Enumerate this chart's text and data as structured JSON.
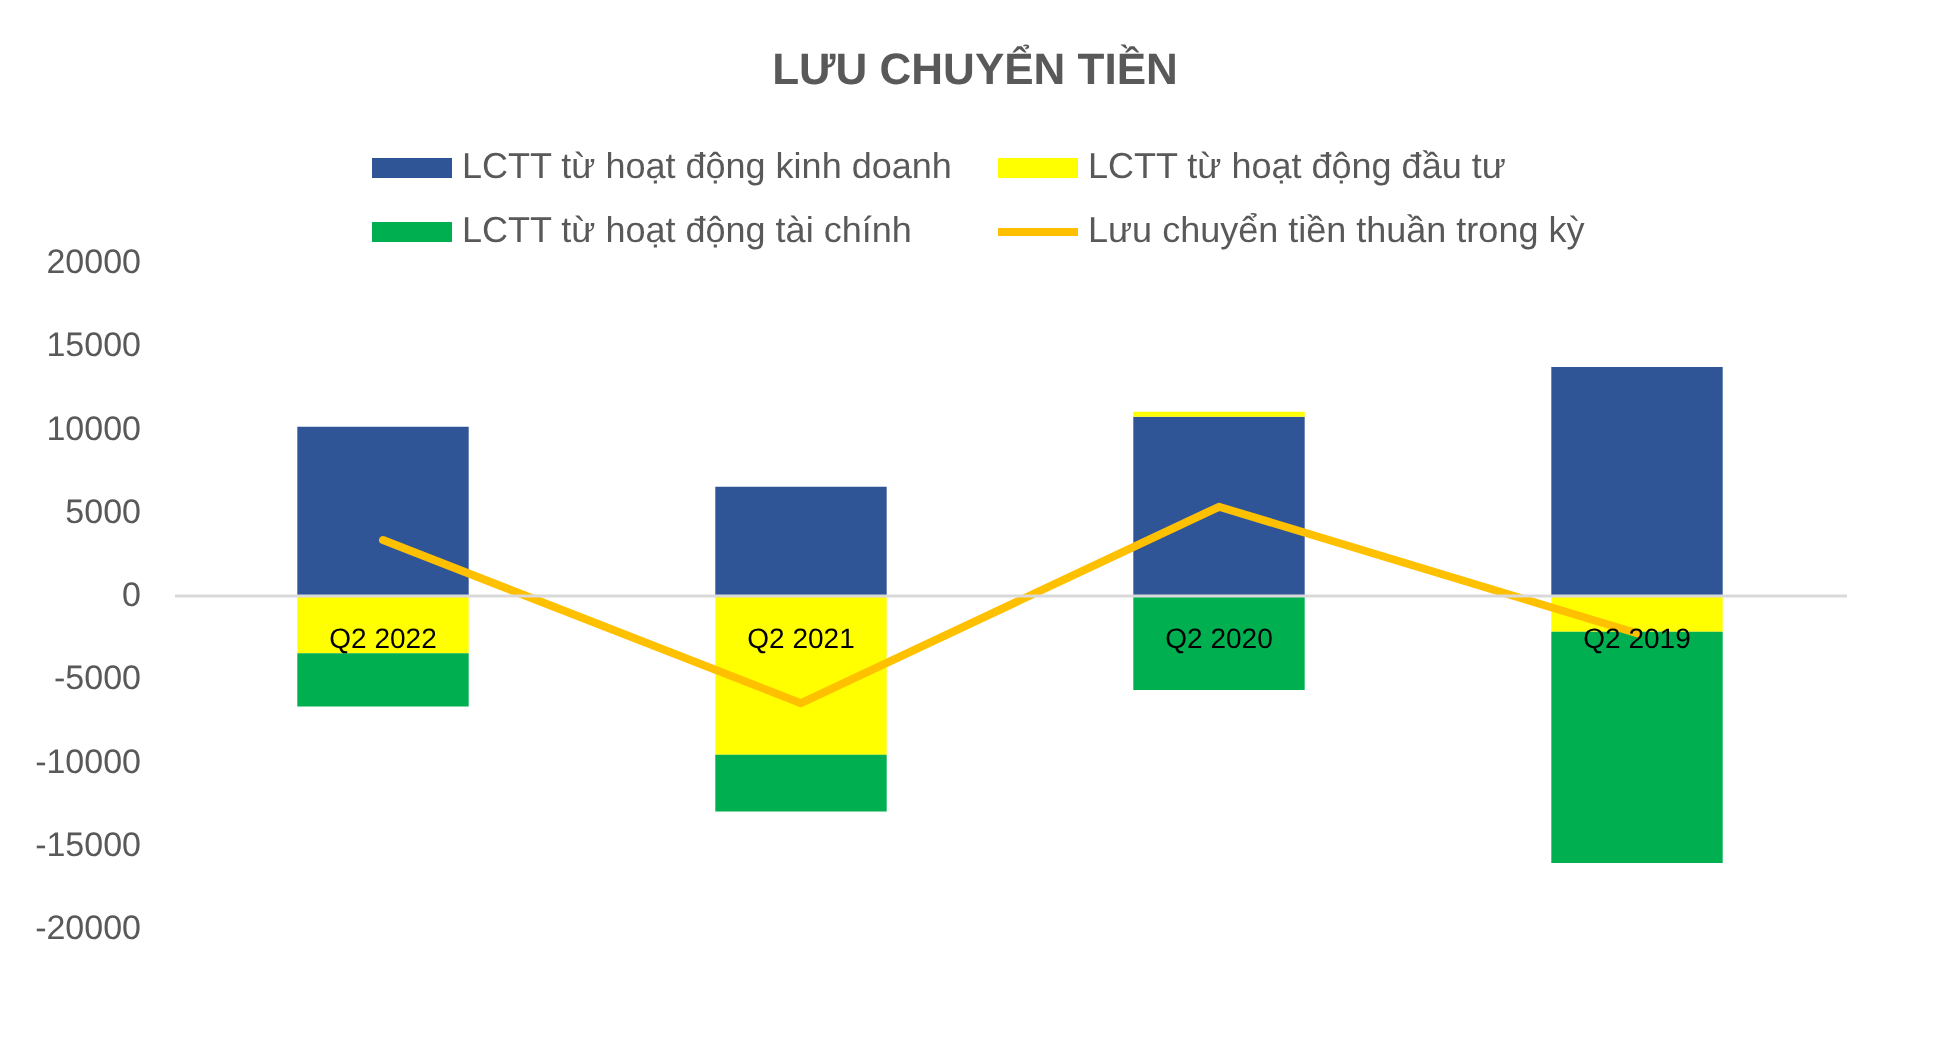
{
  "chart_data": {
    "type": "bar",
    "title": "LƯU CHUYỂN TIỀN",
    "categories": [
      "Q2 2022",
      "Q2 2021",
      "Q2 2020",
      "Q2 2019"
    ],
    "stacked": true,
    "series": [
      {
        "name": "LCTT từ hoạt động kinh doanh",
        "color": "#2f5597",
        "values": [
          10100,
          6500,
          10700,
          13700
        ]
      },
      {
        "name": "LCTT từ hoạt động đầu tư",
        "color": "#ffff00",
        "values": [
          -3500,
          -9600,
          300,
          -2200
        ]
      },
      {
        "name": "LCTT từ hoạt động tài chính",
        "color": "#00b050",
        "values": [
          -3200,
          -3400,
          -5700,
          -13900
        ]
      },
      {
        "name": "Lưu chuyển tiền thuần trong kỳ",
        "type": "line",
        "color": "#ffc000",
        "values": [
          3300,
          -6500,
          5300,
          -2300
        ]
      }
    ],
    "ylim": [
      -20000,
      20000
    ],
    "yticks": [
      -20000,
      -15000,
      -10000,
      -5000,
      0,
      5000,
      10000,
      15000,
      20000
    ],
    "grid": false,
    "legend": "top"
  }
}
